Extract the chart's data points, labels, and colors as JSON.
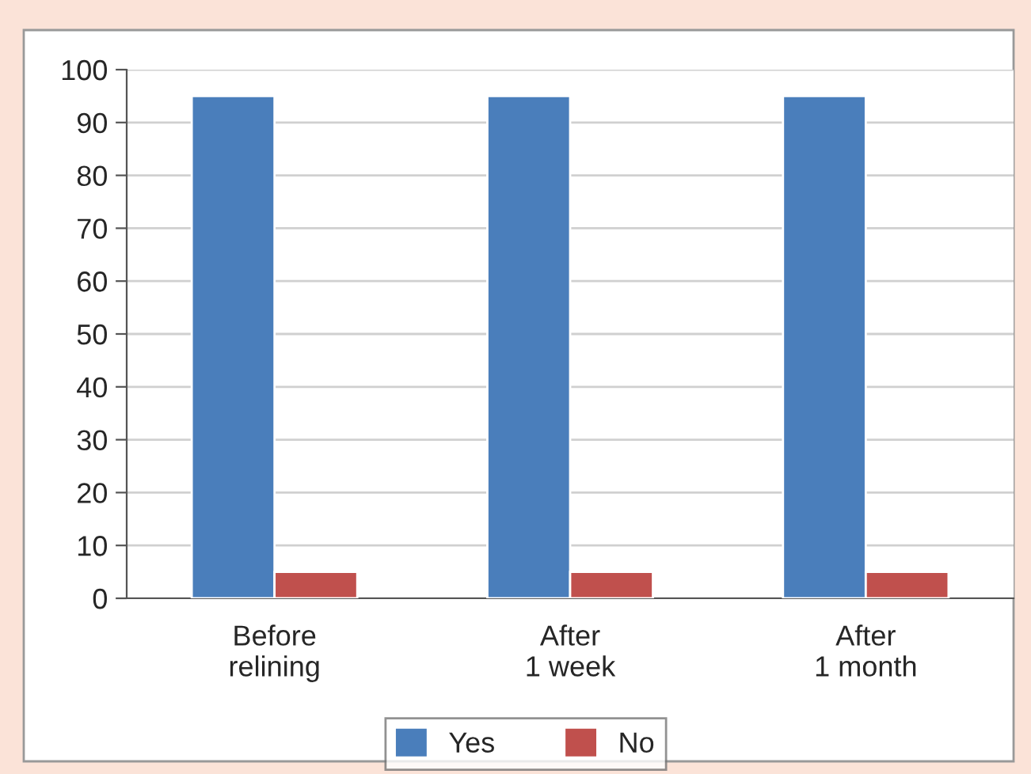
{
  "chart_data": {
    "type": "bar",
    "categories": [
      "Before\nrelining",
      "After\n1 week",
      "After\n1 month"
    ],
    "series": [
      {
        "name": "Yes",
        "color": "#4a7ebb",
        "values": [
          95,
          95,
          95
        ]
      },
      {
        "name": "No",
        "color": "#c0504d",
        "values": [
          5,
          5,
          5
        ]
      }
    ],
    "ylim": [
      0,
      100
    ],
    "yticks": [
      0,
      10,
      20,
      30,
      40,
      50,
      60,
      70,
      80,
      90,
      100
    ],
    "grid": "y",
    "legend": "bottom"
  }
}
